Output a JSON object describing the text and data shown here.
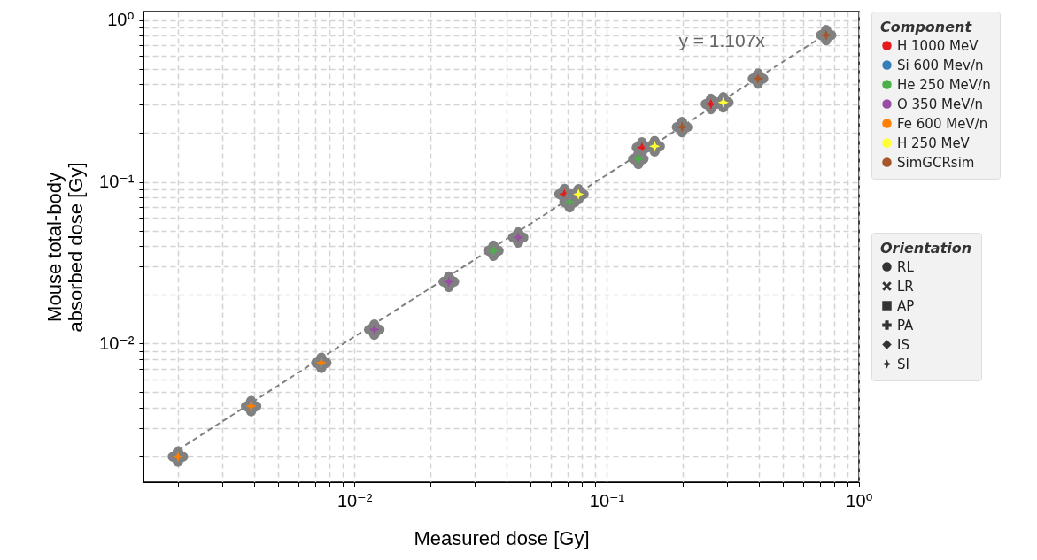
{
  "chart_data": {
    "type": "scatter",
    "xlabel": "Measured dose [Gy]",
    "ylabel": "Mouse total-body\nabsorbed dose [Gy]",
    "legend_title": [
      "Component",
      "Orientation"
    ],
    "log": "xy",
    "grid": true,
    "legend": "right",
    "xlim": [
      0.00146,
      1
    ],
    "ylim": [
      0.00139,
      1.13
    ],
    "xticks": [
      {
        "value": 0.002,
        "label": null
      },
      {
        "value": 0.003,
        "label": null
      },
      {
        "value": 0.004,
        "label": null
      },
      {
        "value": 0.005,
        "label": null
      },
      {
        "value": 0.006,
        "label": null
      },
      {
        "value": 0.007,
        "label": null
      },
      {
        "value": 0.008,
        "label": null
      },
      {
        "value": 0.009,
        "label": null
      },
      {
        "value": 0.01,
        "label": "10⁻²"
      },
      {
        "value": 0.02,
        "label": null
      },
      {
        "value": 0.03,
        "label": null
      },
      {
        "value": 0.04,
        "label": null
      },
      {
        "value": 0.05,
        "label": null
      },
      {
        "value": 0.06,
        "label": null
      },
      {
        "value": 0.07,
        "label": null
      },
      {
        "value": 0.08,
        "label": null
      },
      {
        "value": 0.09,
        "label": null
      },
      {
        "value": 0.1,
        "label": "10⁻¹"
      },
      {
        "value": 0.2,
        "label": null
      },
      {
        "value": 0.3,
        "label": null
      },
      {
        "value": 0.4,
        "label": null
      },
      {
        "value": 0.5,
        "label": null
      },
      {
        "value": 0.6,
        "label": null
      },
      {
        "value": 0.7,
        "label": null
      },
      {
        "value": 0.8,
        "label": null
      },
      {
        "value": 0.9,
        "label": null
      },
      {
        "value": 1,
        "label": "10⁰"
      }
    ],
    "yticks": [
      {
        "value": 0.002,
        "label": null
      },
      {
        "value": 0.003,
        "label": null
      },
      {
        "value": 0.004,
        "label": null
      },
      {
        "value": 0.005,
        "label": null
      },
      {
        "value": 0.006,
        "label": null
      },
      {
        "value": 0.007,
        "label": null
      },
      {
        "value": 0.008,
        "label": null
      },
      {
        "value": 0.009,
        "label": null
      },
      {
        "value": 0.01,
        "label": "10⁻²"
      },
      {
        "value": 0.02,
        "label": null
      },
      {
        "value": 0.03,
        "label": null
      },
      {
        "value": 0.04,
        "label": null
      },
      {
        "value": 0.05,
        "label": null
      },
      {
        "value": 0.06,
        "label": null
      },
      {
        "value": 0.07,
        "label": null
      },
      {
        "value": 0.08,
        "label": null
      },
      {
        "value": 0.09,
        "label": null
      },
      {
        "value": 0.1,
        "label": "10⁻¹"
      },
      {
        "value": 0.2,
        "label": null
      },
      {
        "value": 0.3,
        "label": null
      },
      {
        "value": 0.4,
        "label": null
      },
      {
        "value": 0.5,
        "label": null
      },
      {
        "value": 0.6,
        "label": null
      },
      {
        "value": 0.7,
        "label": null
      },
      {
        "value": 0.8,
        "label": null
      },
      {
        "value": 0.9,
        "label": null
      },
      {
        "value": 1,
        "label": "10⁰"
      }
    ],
    "annotations": [
      "y = 1.107x"
    ],
    "series": [
      {
        "type": "line",
        "color": "#808080",
        "line_style": "dashed",
        "x": [
          0.002,
          0.75
        ],
        "values": [
          0.0022,
          0.83
        ]
      },
      {
        "name": "H 1000 MeV",
        "color": "#e41a1c",
        "marker": "star",
        "x": [
          0.068,
          0.138,
          0.259
        ],
        "values": [
          0.084,
          0.163,
          0.303
        ]
      },
      {
        "name": "Si 600 Mev/n",
        "color": "#377eb8"
      },
      {
        "name": "He 250 MeV/n",
        "color": "#4daf4a",
        "marker": "star",
        "x": [
          0.0356,
          0.0713,
          0.1336
        ],
        "values": [
          0.0375,
          0.0748,
          0.1387
        ]
      },
      {
        "name": "O 350 MeV/n",
        "color": "#984ea3",
        "marker": "star",
        "x": [
          0.012,
          0.0237,
          0.0446
        ],
        "values": [
          0.0122,
          0.0241,
          0.0453
        ]
      },
      {
        "name": "Fe 600 MeV/n",
        "color": "#ff7f00",
        "marker": "star",
        "x": [
          0.002,
          0.0039,
          0.0074
        ],
        "values": [
          0.002,
          0.0041,
          0.0076
        ]
      },
      {
        "name": "H 250 MeV",
        "color": "#ffff33",
        "marker": "star",
        "x": [
          0.0773,
          0.155,
          0.29
        ],
        "values": [
          0.0838,
          0.166,
          0.31
        ]
      },
      {
        "name": "SimGCRsim",
        "color": "#a65628",
        "marker": "star",
        "x": [
          0.199,
          0.398,
          0.741
        ],
        "values": [
          0.218,
          0.435,
          0.808
        ]
      },
      {
        "name": "RL",
        "color": "#333333",
        "marker": "circle"
      },
      {
        "name": "LR",
        "color": "#333333",
        "marker": "x"
      },
      {
        "name": "AP",
        "color": "#333333",
        "marker": "square"
      },
      {
        "name": "PA",
        "color": "#333333",
        "marker": "cross"
      },
      {
        "name": "IS",
        "color": "#333333",
        "marker": "diamond"
      },
      {
        "name": "SI",
        "color": "#333333",
        "marker": "star"
      }
    ]
  }
}
